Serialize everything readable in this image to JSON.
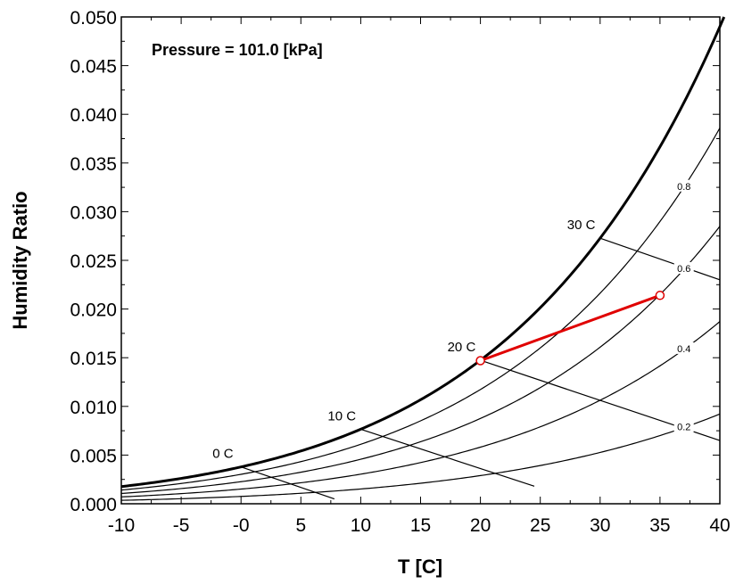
{
  "chart_data": {
    "type": "line",
    "title": "",
    "annotation": "Pressure = 101.0 [kPa]",
    "xlabel": "T [C]",
    "ylabel": "Humidity Ratio",
    "xlim": [
      -10,
      40
    ],
    "ylim": [
      0.0,
      0.05
    ],
    "x_ticks": [
      "-10",
      "-5",
      "-0",
      "5",
      "10",
      "15",
      "20",
      "25",
      "30",
      "35",
      "40"
    ],
    "y_ticks": [
      "0.000",
      "0.005",
      "0.010",
      "0.015",
      "0.020",
      "0.025",
      "0.030",
      "0.035",
      "0.040",
      "0.045",
      "0.050"
    ],
    "grid": false,
    "pressure_kpa": 101.0,
    "saturation_curve": {
      "relative_humidity": 1.0
    },
    "relative_humidity_curves": [
      {
        "name": "0.2",
        "relative_humidity": 0.2
      },
      {
        "name": "0.4",
        "relative_humidity": 0.4
      },
      {
        "name": "0.6",
        "relative_humidity": 0.6
      },
      {
        "name": "0.8",
        "relative_humidity": 0.8
      }
    ],
    "wet_bulb_lines": [
      {
        "name": "0 C",
        "t_wb": 0,
        "end": [
          7.8,
          0.0005
        ]
      },
      {
        "name": "10 C",
        "t_wb": 10,
        "end": [
          24.5,
          0.0018
        ]
      },
      {
        "name": "20 C",
        "t_wb": 20,
        "end": [
          40,
          0.0065
        ]
      },
      {
        "name": "30 C",
        "t_wb": 30,
        "end": [
          40,
          0.023
        ]
      }
    ],
    "process_line": {
      "color": "#e00000",
      "points": [
        {
          "T": 20,
          "w": 0.0147
        },
        {
          "T": 35,
          "w": 0.0214
        }
      ]
    }
  }
}
